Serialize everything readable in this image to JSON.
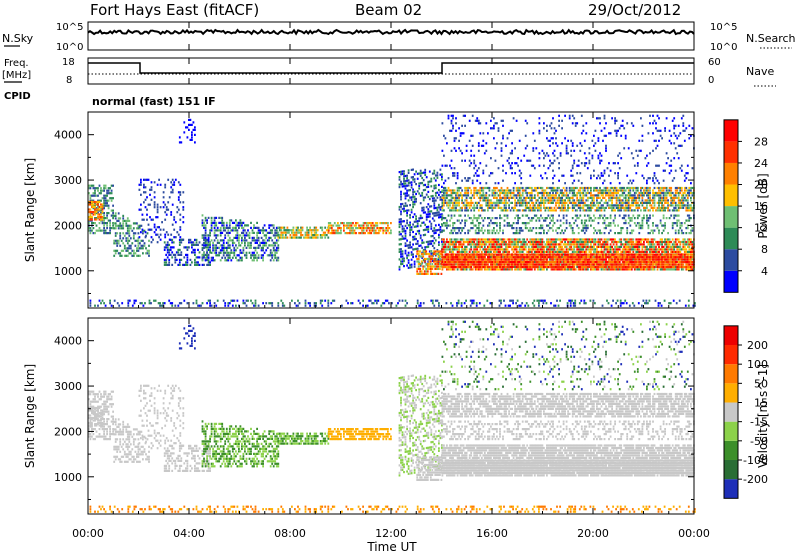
{
  "header": {
    "station": "Fort Hays East (fitACF)",
    "beam": "Beam 02",
    "date": "29/Oct/2012"
  },
  "noise_panel": {
    "left_label": "N.Sky",
    "right_label": "N.Search",
    "left_ticks": [
      "10^5",
      "10^0"
    ],
    "right_ticks": [
      "10^5",
      "10^0"
    ]
  },
  "freq_panel": {
    "left_label_1": "Freq.",
    "left_label_2": "[MHz]",
    "right_label": "Nave",
    "left_ticks": [
      "18",
      "8"
    ],
    "right_ticks": [
      "60",
      "0"
    ],
    "cpid_label": "CPID",
    "cpid_value": "normal (fast) 151 IF"
  },
  "x_axis": {
    "label": "Time UT",
    "ticks": [
      "00:00",
      "04:00",
      "08:00",
      "12:00",
      "16:00",
      "20:00",
      "00:00"
    ]
  },
  "colors": {
    "power": [
      "#0000ff",
      "#2c4ba0",
      "#2e8b57",
      "#6fbf73",
      "#ffbf00",
      "#ff8000",
      "#ff3000",
      "#ff0000"
    ],
    "velocity": [
      "#1e2fb8",
      "#2a6e35",
      "#3c8f2a",
      "#8cd24a",
      "#c8c8c8",
      "#ffae00",
      "#ff7a00",
      "#ff2a00",
      "#ee0000"
    ]
  },
  "chart_data": [
    {
      "type": "heatmap",
      "title": "Power",
      "ylabel": "Slant Range [km]",
      "xlabel": "",
      "xlim": [
        0,
        24
      ],
      "ylim": [
        180,
        4500
      ],
      "y_ticks": [
        "1000",
        "2000",
        "3000",
        "4000"
      ],
      "colorbar": {
        "label": "Power [dB]",
        "ticks": [
          "4",
          "8",
          "12",
          "16",
          "20",
          "24",
          "28"
        ]
      }
    },
    {
      "type": "heatmap",
      "title": "Velocity",
      "ylabel": "Slant Range [km]",
      "xlabel": "Time UT",
      "xlim": [
        0,
        24
      ],
      "ylim": [
        180,
        4500
      ],
      "y_ticks": [
        "1000",
        "2000",
        "3000",
        "4000"
      ],
      "colorbar": {
        "label": "Velocity [m s^-1]",
        "ticks": [
          "200",
          "100",
          "50",
          "15",
          "-15",
          "-50",
          "-100",
          "-200"
        ]
      }
    }
  ]
}
